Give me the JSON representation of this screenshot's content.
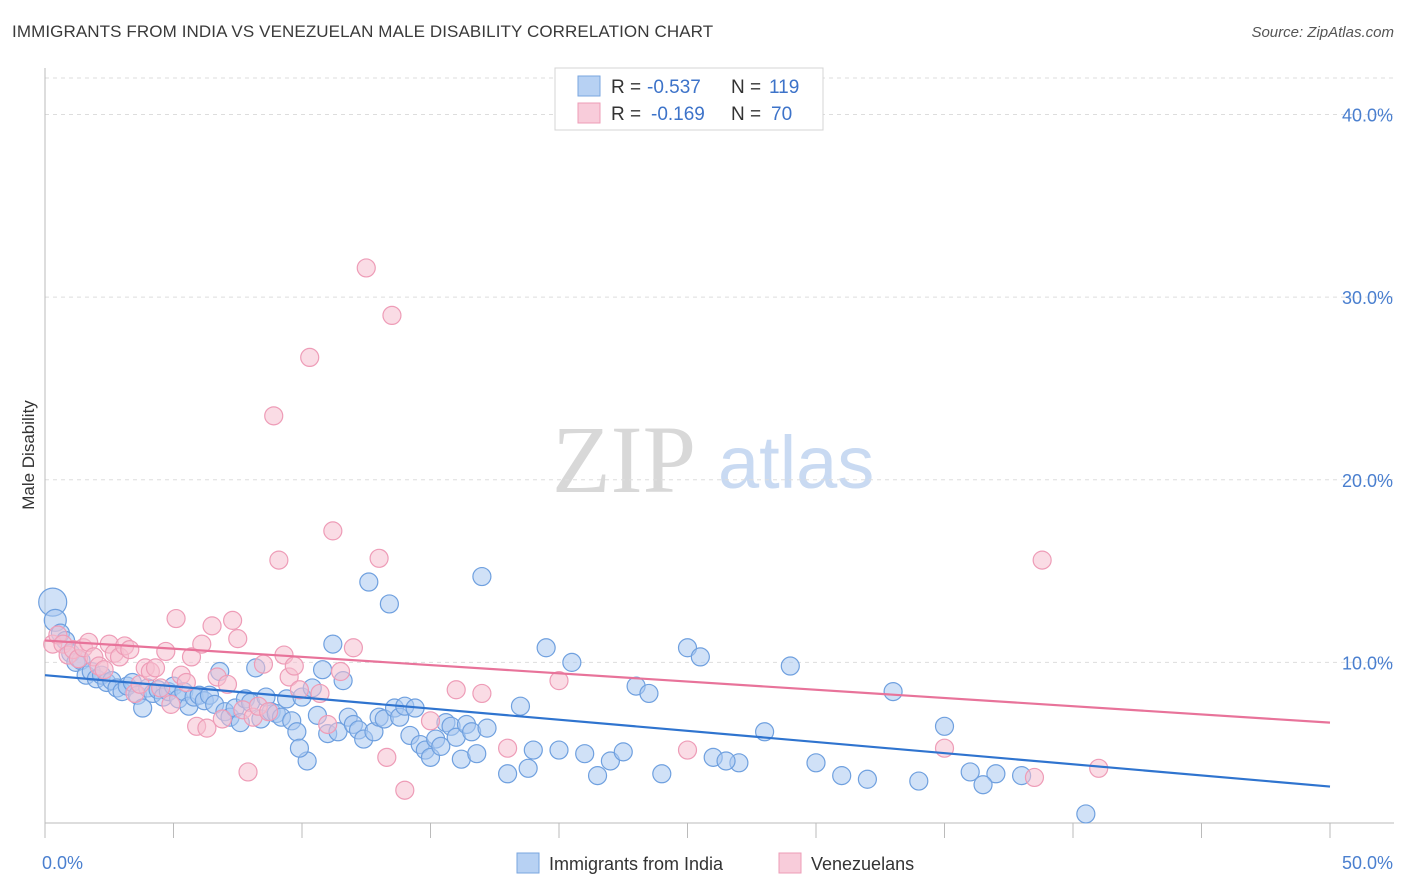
{
  "title": "IMMIGRANTS FROM INDIA VS VENEZUELAN MALE DISABILITY CORRELATION CHART",
  "source": "Source: ZipAtlas.com",
  "watermark": {
    "zip": "ZIP",
    "atlas": "atlas"
  },
  "colors": {
    "blue_fill": "#a9c8f0",
    "blue_stroke": "#6fa0df",
    "blue_line": "#2f74cf",
    "pink_fill": "#f6bfd0",
    "pink_stroke": "#ee9cb7",
    "pink_line": "#e8739a",
    "tick_text": "#4a7fcf",
    "grid": "#dddddd"
  },
  "legend": {
    "rows": [
      {
        "r_label": "R =",
        "r_value": "-0.537",
        "n_label": "N =",
        "n_value": "119"
      },
      {
        "r_label": "R =",
        "r_value": "-0.169",
        "n_label": "N =",
        "n_value": "70"
      }
    ]
  },
  "chart_data": {
    "type": "scatter",
    "title": "IMMIGRANTS FROM INDIA VS VENEZUELAN MALE DISABILITY CORRELATION CHART",
    "xlabel": "",
    "ylabel": "Male Disability",
    "xlim": [
      0,
      50
    ],
    "ylim": [
      0,
      42
    ],
    "x_tick_labels": [
      "0.0%",
      "50.0%"
    ],
    "y_ticks": [
      10,
      20,
      30,
      40
    ],
    "y_tick_labels": [
      "10.0%",
      "20.0%",
      "30.0%",
      "40.0%"
    ],
    "grid": "horizontal dashed",
    "legend_position": "top-center",
    "series": [
      {
        "name": "Immigrants from India",
        "color": "#a9c8f0",
        "trend": {
          "x": [
            0,
            50
          ],
          "y": [
            9.3,
            3.2
          ]
        },
        "points": [
          [
            0.3,
            13.3
          ],
          [
            0.4,
            12.3
          ],
          [
            0.6,
            11.6
          ],
          [
            0.8,
            11.2
          ],
          [
            1.0,
            10.5
          ],
          [
            1.2,
            10.0
          ],
          [
            1.4,
            10.1
          ],
          [
            1.6,
            9.3
          ],
          [
            1.8,
            9.5
          ],
          [
            2.0,
            9.1
          ],
          [
            2.2,
            9.3
          ],
          [
            2.4,
            8.9
          ],
          [
            2.6,
            9.0
          ],
          [
            2.8,
            8.6
          ],
          [
            3.0,
            8.4
          ],
          [
            3.2,
            8.7
          ],
          [
            3.4,
            8.9
          ],
          [
            3.6,
            8.2
          ],
          [
            3.8,
            7.5
          ],
          [
            4.0,
            8.6
          ],
          [
            4.2,
            8.3
          ],
          [
            4.4,
            8.5
          ],
          [
            4.6,
            8.1
          ],
          [
            4.8,
            8.4
          ],
          [
            5.0,
            8.7
          ],
          [
            5.2,
            8.0
          ],
          [
            5.4,
            8.4
          ],
          [
            5.6,
            7.6
          ],
          [
            5.8,
            8.1
          ],
          [
            6.0,
            8.2
          ],
          [
            6.2,
            7.9
          ],
          [
            6.4,
            8.2
          ],
          [
            6.6,
            7.7
          ],
          [
            6.8,
            9.5
          ],
          [
            7.0,
            7.3
          ],
          [
            7.2,
            7.0
          ],
          [
            7.4,
            7.5
          ],
          [
            7.6,
            6.7
          ],
          [
            7.8,
            8.0
          ],
          [
            8.0,
            7.8
          ],
          [
            8.2,
            9.7
          ],
          [
            8.4,
            6.9
          ],
          [
            8.6,
            8.1
          ],
          [
            8.8,
            7.3
          ],
          [
            9.0,
            7.2
          ],
          [
            9.2,
            7.0
          ],
          [
            9.4,
            8.0
          ],
          [
            9.6,
            6.8
          ],
          [
            9.8,
            6.2
          ],
          [
            10.0,
            8.1
          ],
          [
            10.2,
            4.6
          ],
          [
            10.4,
            8.6
          ],
          [
            10.6,
            7.1
          ],
          [
            10.8,
            9.6
          ],
          [
            11.0,
            6.1
          ],
          [
            11.2,
            11.0
          ],
          [
            11.4,
            6.2
          ],
          [
            11.6,
            9.0
          ],
          [
            11.8,
            7.0
          ],
          [
            12.0,
            6.6
          ],
          [
            12.2,
            6.3
          ],
          [
            12.4,
            5.8
          ],
          [
            12.6,
            14.4
          ],
          [
            12.8,
            6.2
          ],
          [
            13.0,
            7.0
          ],
          [
            13.2,
            6.9
          ],
          [
            13.4,
            13.2
          ],
          [
            13.6,
            7.5
          ],
          [
            13.8,
            7.0
          ],
          [
            14.0,
            7.6
          ],
          [
            14.2,
            6.0
          ],
          [
            14.4,
            7.5
          ],
          [
            14.6,
            5.5
          ],
          [
            14.8,
            5.2
          ],
          [
            15.0,
            4.8
          ],
          [
            15.2,
            5.8
          ],
          [
            15.4,
            5.4
          ],
          [
            15.6,
            6.7
          ],
          [
            15.8,
            6.5
          ],
          [
            16.0,
            5.9
          ],
          [
            16.2,
            4.7
          ],
          [
            16.4,
            6.6
          ],
          [
            16.6,
            6.2
          ],
          [
            16.8,
            5.0
          ],
          [
            17.0,
            14.7
          ],
          [
            17.2,
            6.4
          ],
          [
            18.0,
            3.9
          ],
          [
            18.5,
            7.6
          ],
          [
            19.0,
            5.2
          ],
          [
            19.5,
            10.8
          ],
          [
            20.0,
            5.2
          ],
          [
            20.5,
            10.0
          ],
          [
            21.0,
            5.0
          ],
          [
            21.5,
            3.8
          ],
          [
            22.0,
            4.6
          ],
          [
            22.5,
            5.1
          ],
          [
            23.0,
            8.7
          ],
          [
            23.5,
            8.3
          ],
          [
            24.0,
            3.9
          ],
          [
            25.0,
            10.8
          ],
          [
            25.5,
            10.3
          ],
          [
            26.0,
            4.8
          ],
          [
            27.0,
            4.5
          ],
          [
            28.0,
            6.2
          ],
          [
            29.0,
            9.8
          ],
          [
            30.0,
            4.5
          ],
          [
            31.0,
            3.8
          ],
          [
            32.0,
            3.6
          ],
          [
            33.0,
            8.4
          ],
          [
            34.0,
            3.5
          ],
          [
            35.0,
            6.5
          ],
          [
            36.0,
            4.0
          ],
          [
            37.0,
            3.9
          ],
          [
            38.0,
            3.8
          ],
          [
            40.5,
            1.7
          ],
          [
            36.5,
            3.3
          ],
          [
            26.5,
            4.6
          ],
          [
            18.8,
            4.2
          ],
          [
            9.9,
            5.3
          ]
        ]
      },
      {
        "name": "Venezuelans",
        "color": "#f6bfd0",
        "trend": {
          "x": [
            0,
            50
          ],
          "y": [
            11.2,
            6.7
          ]
        },
        "points": [
          [
            0.3,
            11.0
          ],
          [
            0.5,
            11.5
          ],
          [
            0.7,
            11.0
          ],
          [
            0.9,
            10.4
          ],
          [
            1.1,
            10.7
          ],
          [
            1.3,
            10.2
          ],
          [
            1.5,
            10.8
          ],
          [
            1.7,
            11.1
          ],
          [
            1.9,
            10.3
          ],
          [
            2.1,
            9.8
          ],
          [
            2.3,
            9.6
          ],
          [
            2.5,
            11.0
          ],
          [
            2.7,
            10.5
          ],
          [
            2.9,
            10.3
          ],
          [
            3.1,
            10.9
          ],
          [
            3.3,
            10.7
          ],
          [
            3.5,
            8.3
          ],
          [
            3.7,
            8.8
          ],
          [
            3.9,
            9.7
          ],
          [
            4.1,
            9.5
          ],
          [
            4.3,
            9.7
          ],
          [
            4.5,
            8.6
          ],
          [
            4.7,
            10.6
          ],
          [
            4.9,
            7.7
          ],
          [
            5.1,
            12.4
          ],
          [
            5.3,
            9.3
          ],
          [
            5.5,
            8.9
          ],
          [
            5.7,
            10.3
          ],
          [
            5.9,
            6.5
          ],
          [
            6.1,
            11.0
          ],
          [
            6.3,
            6.4
          ],
          [
            6.5,
            12.0
          ],
          [
            6.7,
            9.2
          ],
          [
            6.9,
            6.9
          ],
          [
            7.1,
            8.8
          ],
          [
            7.3,
            12.3
          ],
          [
            7.5,
            11.3
          ],
          [
            7.7,
            7.4
          ],
          [
            7.9,
            4.0
          ],
          [
            8.1,
            7.0
          ],
          [
            8.3,
            7.6
          ],
          [
            8.5,
            9.9
          ],
          [
            8.7,
            7.3
          ],
          [
            8.9,
            23.5
          ],
          [
            9.1,
            15.6
          ],
          [
            9.3,
            10.4
          ],
          [
            9.5,
            9.2
          ],
          [
            9.7,
            9.8
          ],
          [
            9.9,
            8.5
          ],
          [
            10.3,
            26.7
          ],
          [
            10.7,
            8.3
          ],
          [
            11.0,
            6.6
          ],
          [
            11.2,
            17.2
          ],
          [
            11.5,
            9.5
          ],
          [
            12.0,
            10.8
          ],
          [
            12.5,
            31.6
          ],
          [
            13.0,
            15.7
          ],
          [
            13.3,
            4.8
          ],
          [
            13.5,
            29.0
          ],
          [
            14.0,
            3.0
          ],
          [
            15.0,
            6.8
          ],
          [
            16.0,
            8.5
          ],
          [
            17.0,
            8.3
          ],
          [
            18.0,
            5.3
          ],
          [
            20.0,
            9.0
          ],
          [
            25.0,
            5.2
          ],
          [
            35.0,
            5.3
          ],
          [
            38.5,
            3.7
          ],
          [
            38.8,
            15.6
          ],
          [
            41.0,
            4.2
          ]
        ]
      }
    ]
  }
}
